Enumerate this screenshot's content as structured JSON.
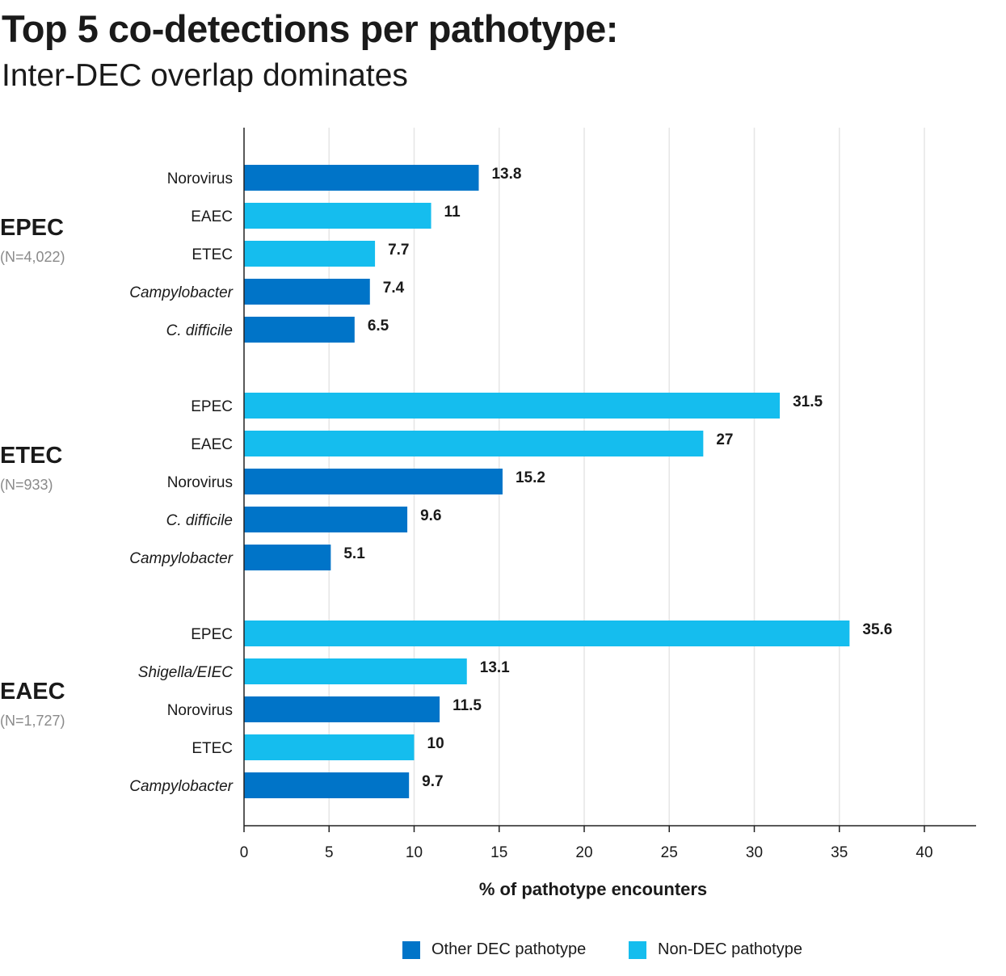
{
  "title": "Top 5 co-detections per pathotype:",
  "subtitle": "Inter-DEC overlap dominates",
  "colors": {
    "other_dec": "#0074C8",
    "non_dec": "#15BDEE",
    "grid": "#e6e6e6",
    "axis": "#222222"
  },
  "legend": {
    "other_dec": "Other DEC pathotype",
    "non_dec": "Non-DEC pathotype"
  },
  "chart_data": {
    "type": "bar",
    "orientation": "horizontal",
    "title": "Top 5 co-detections per pathotype:",
    "subtitle": "Inter-DEC overlap dominates",
    "xlabel": "% of pathotype encounters",
    "xlim": [
      0,
      43
    ],
    "xticks": [
      0,
      5,
      10,
      15,
      20,
      25,
      30,
      35,
      40
    ],
    "grid": "vertical",
    "legend_position": "bottom",
    "groups": [
      {
        "name": "EPEC",
        "n_label": "(N=4,022)",
        "bars": [
          {
            "label": "Norovirus",
            "value": 13.8,
            "category": "Other DEC pathotype",
            "italic": false
          },
          {
            "label": "EAEC",
            "value": 11,
            "category": "Non-DEC pathotype",
            "italic": false
          },
          {
            "label": "ETEC",
            "value": 7.7,
            "category": "Non-DEC pathotype",
            "italic": false
          },
          {
            "label": "Campylobacter",
            "value": 7.4,
            "category": "Other DEC pathotype",
            "italic": true
          },
          {
            "label": "C. difficile",
            "value": 6.5,
            "category": "Other DEC pathotype",
            "italic": true
          }
        ]
      },
      {
        "name": "ETEC",
        "n_label": "(N=933)",
        "bars": [
          {
            "label": "EPEC",
            "value": 31.5,
            "category": "Non-DEC pathotype",
            "italic": false
          },
          {
            "label": "EAEC",
            "value": 27,
            "category": "Non-DEC pathotype",
            "italic": false
          },
          {
            "label": "Norovirus",
            "value": 15.2,
            "category": "Other DEC pathotype",
            "italic": false
          },
          {
            "label": "C. difficile",
            "value": 9.6,
            "category": "Other DEC pathotype",
            "italic": true
          },
          {
            "label": "Campylobacter",
            "value": 5.1,
            "category": "Other DEC pathotype",
            "italic": true
          }
        ]
      },
      {
        "name": "EAEC",
        "n_label": "(N=1,727)",
        "bars": [
          {
            "label": "EPEC",
            "value": 35.6,
            "category": "Non-DEC pathotype",
            "italic": false
          },
          {
            "label": "Shigella/EIEC",
            "value": 13.1,
            "category": "Non-DEC pathotype",
            "italic": true
          },
          {
            "label": "Norovirus",
            "value": 11.5,
            "category": "Other DEC pathotype",
            "italic": false
          },
          {
            "label": "ETEC",
            "value": 10,
            "category": "Non-DEC pathotype",
            "italic": false
          },
          {
            "label": "Campylobacter",
            "value": 9.7,
            "category": "Other DEC pathotype",
            "italic": true
          }
        ]
      }
    ]
  }
}
